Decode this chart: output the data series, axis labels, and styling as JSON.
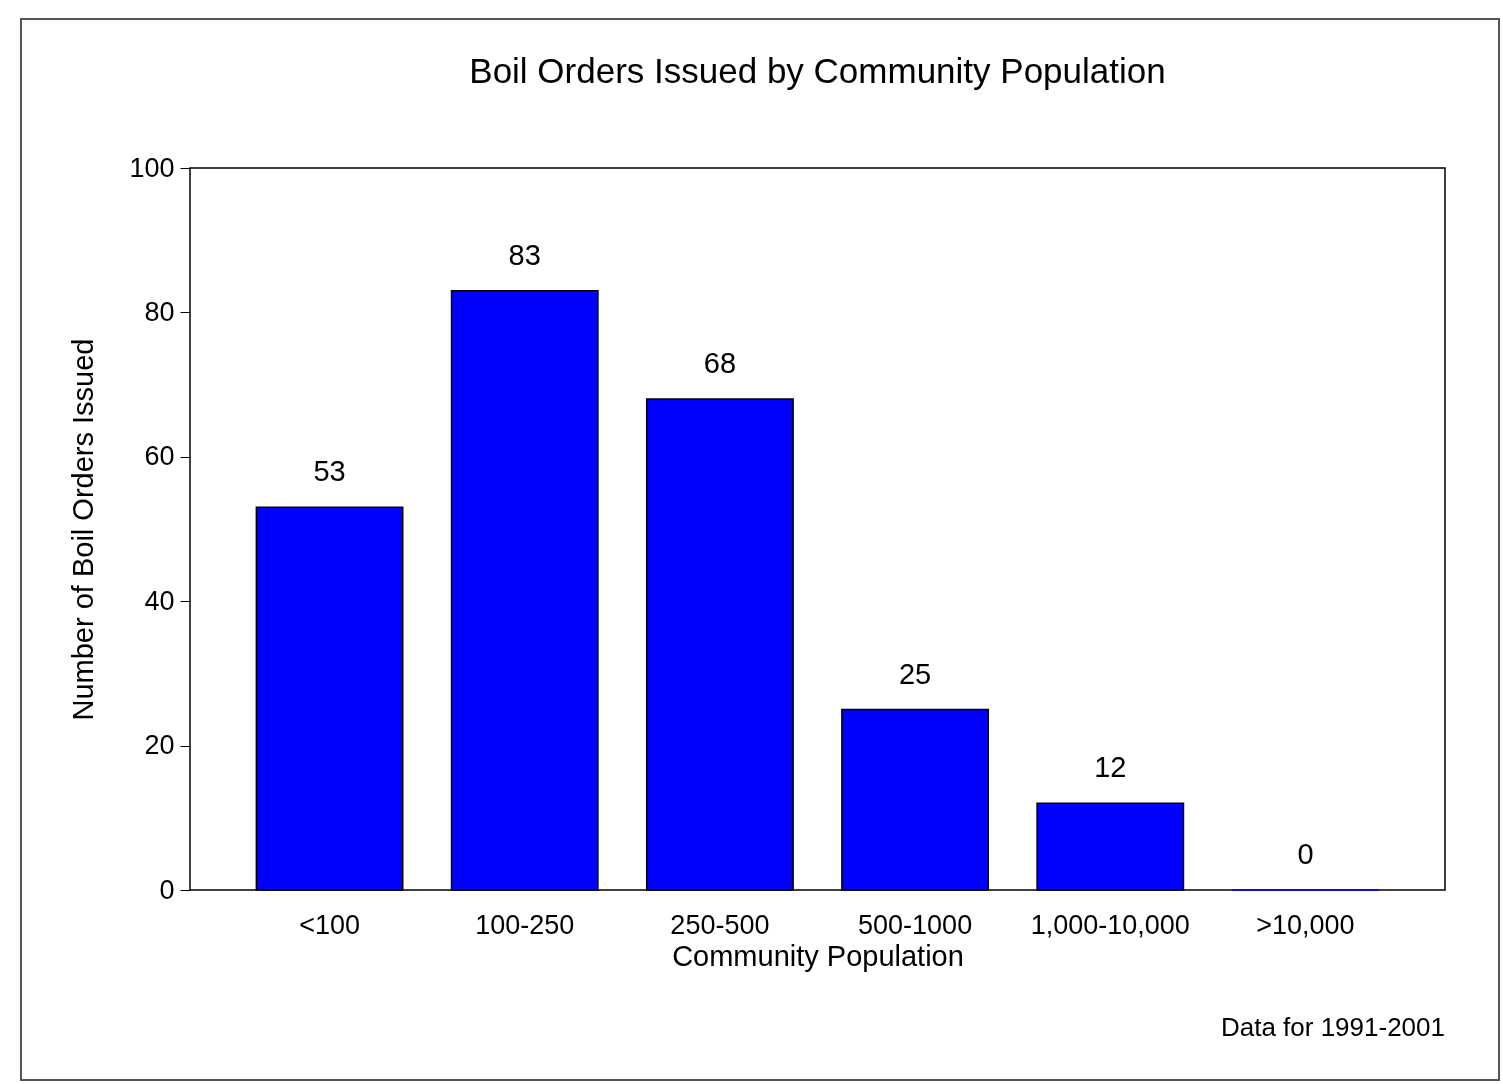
{
  "chart_data": {
    "type": "bar",
    "title": "Boil Orders Issued by Community Population",
    "xlabel": "Community Population",
    "ylabel": "Number of Boil Orders Issued",
    "categories": [
      "<100",
      "100-250",
      "250-500",
      "500-1000",
      "1,000-10,000",
      ">10,000"
    ],
    "values": [
      53,
      83,
      68,
      25,
      12,
      0
    ],
    "color": "#0000ff",
    "data_labels": true,
    "ylim": [
      0,
      100
    ],
    "yticks": [
      0,
      20,
      40,
      60,
      80,
      100
    ],
    "grid": false,
    "annotations": [
      "Data for 1991-2001"
    ]
  }
}
